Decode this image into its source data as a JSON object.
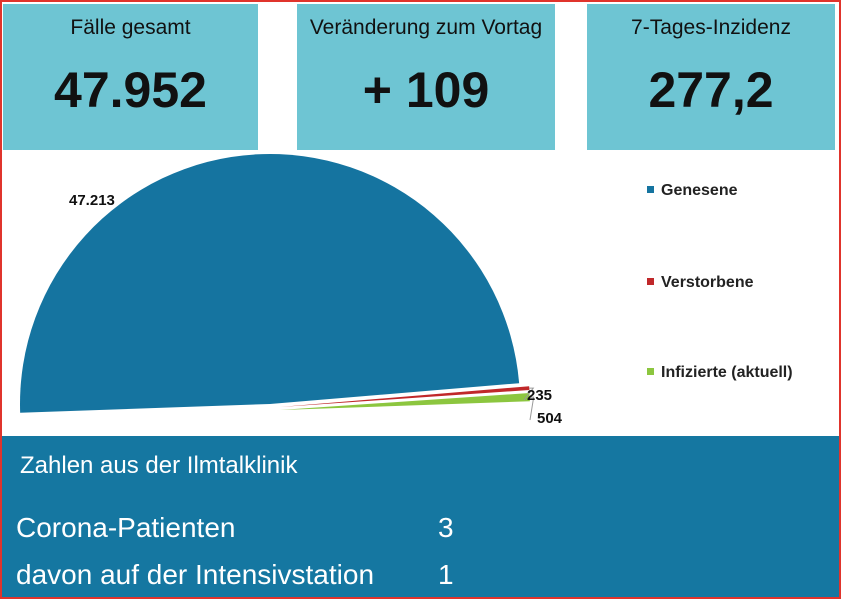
{
  "tiles": [
    {
      "label": "Fälle gesamt",
      "value": "47.952"
    },
    {
      "label": "Veränderung zum Vortag",
      "value": "+ 109"
    },
    {
      "label": "7-Tages-Inzidenz",
      "value": "277,2"
    }
  ],
  "colors": {
    "frame": "#e0342c",
    "tile_bg": "#6ec5d3",
    "clinic_bg": "#1577a1"
  },
  "chart_data": {
    "type": "pie",
    "title": "",
    "categories": [
      "Genesene",
      "Verstorbene",
      "Infizierte (aktuell)"
    ],
    "values": [
      47213,
      235,
      504
    ],
    "data_labels": [
      "47.213",
      "235",
      "504"
    ],
    "colors": [
      "#1574a0",
      "#c0282a",
      "#8cc63f"
    ],
    "layout": "half-pie",
    "legend_position": "right"
  },
  "clinic": {
    "title": "Zahlen aus der Ilmtalklinik",
    "rows": [
      {
        "label": "Corona-Patienten",
        "value": "3"
      },
      {
        "label": "davon auf der Intensivstation",
        "value": "1"
      }
    ]
  }
}
